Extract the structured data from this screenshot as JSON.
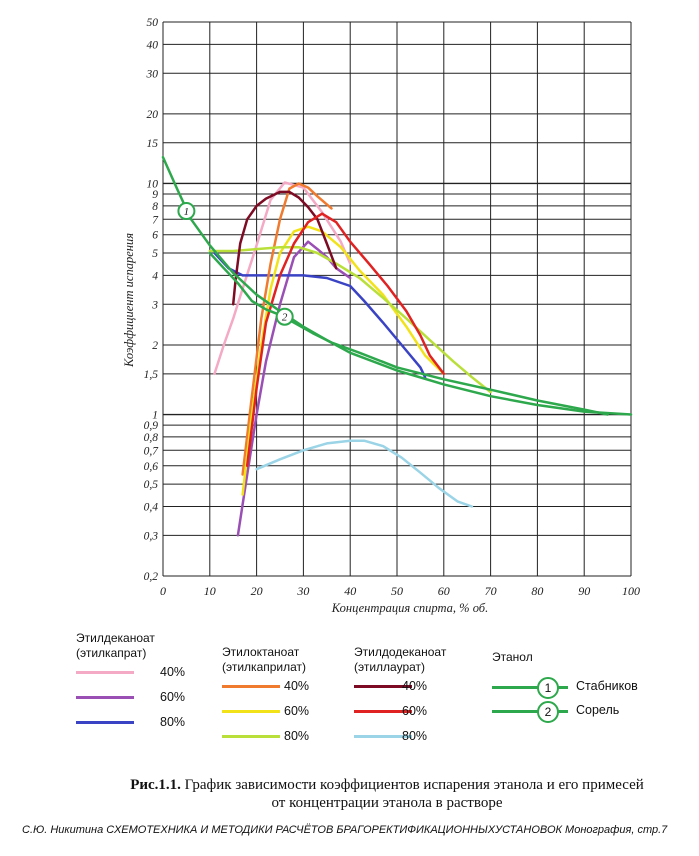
{
  "chart_data": {
    "type": "line",
    "x_scale": "linear",
    "y_scale": "log",
    "xlim": [
      0,
      100
    ],
    "ylim": [
      0.2,
      50
    ],
    "xlabel": "Концентрация спирта, % об.",
    "ylabel": "Коэффициент испарения",
    "x_ticks": [
      0,
      10,
      20,
      30,
      40,
      50,
      60,
      70,
      80,
      90,
      100
    ],
    "y_ticks": [
      0.2,
      0.3,
      0.4,
      0.5,
      0.6,
      0.7,
      0.8,
      0.9,
      1,
      1.5,
      2,
      3,
      4,
      5,
      6,
      7,
      8,
      9,
      10,
      15,
      20,
      30,
      40,
      50
    ],
    "y_tick_labels": [
      "0,2",
      "0,3",
      "0,4",
      "0,5",
      "0,6",
      "0,7",
      "0,8",
      "0,9",
      "1",
      "1,5",
      "2",
      "3",
      "4",
      "5",
      "6",
      "7",
      "8",
      "9",
      "10",
      "15",
      "20",
      "30",
      "40",
      "50"
    ],
    "grid": true,
    "series": [
      {
        "name": "Этилдеканоат 40%",
        "color": "#f4a9c4",
        "x": [
          11,
          13,
          15,
          17,
          20,
          23,
          26,
          30,
          34,
          38,
          40
        ],
        "y": [
          1.5,
          2.0,
          2.6,
          3.5,
          5.4,
          8.5,
          10.1,
          9.6,
          7.5,
          5.6,
          4.5
        ]
      },
      {
        "name": "Этилдеканоат 60%",
        "color": "#9a4fb5",
        "x": [
          16,
          18,
          20,
          22,
          25,
          28,
          31,
          33,
          35,
          37,
          40
        ],
        "y": [
          0.3,
          0.55,
          1.0,
          1.7,
          3.0,
          4.8,
          5.6,
          5.2,
          4.8,
          4.3,
          3.9
        ]
      },
      {
        "name": "Этилдеканоат 80%",
        "color": "#3a43c4",
        "x": [
          11,
          14,
          17,
          20,
          25,
          30,
          35,
          40,
          43,
          47,
          51,
          55,
          56
        ],
        "y": [
          5.0,
          4.3,
          4.0,
          4.0,
          4.0,
          4.0,
          3.9,
          3.6,
          3.1,
          2.5,
          2.0,
          1.6,
          1.45
        ]
      },
      {
        "name": "Этилоктаноат 40%",
        "color": "#f07a2e",
        "x": [
          17,
          19,
          21,
          23,
          25,
          27,
          29,
          31,
          33,
          36
        ],
        "y": [
          0.55,
          1.2,
          2.6,
          4.5,
          7.0,
          9.5,
          10.0,
          9.6,
          8.8,
          7.8
        ]
      },
      {
        "name": "Этилоктаноат 60%",
        "color": "#f2e21a",
        "x": [
          17,
          19,
          21,
          23,
          25,
          28,
          31,
          34,
          38,
          42,
          47,
          52,
          56,
          60
        ],
        "y": [
          0.45,
          1.0,
          2.0,
          3.5,
          5.0,
          6.2,
          6.5,
          6.2,
          5.3,
          4.2,
          3.3,
          2.4,
          1.8,
          1.5
        ]
      },
      {
        "name": "Этилоктаноат 80%",
        "color": "#b9df3a",
        "x": [
          10,
          15,
          20,
          25,
          29,
          33,
          37,
          42,
          47,
          52,
          57,
          62,
          66,
          70
        ],
        "y": [
          5.1,
          5.1,
          5.2,
          5.3,
          5.3,
          5.0,
          4.5,
          3.9,
          3.2,
          2.6,
          2.1,
          1.7,
          1.45,
          1.25
        ]
      },
      {
        "name": "Этилдодеканоат 40%",
        "color": "#7d0b24",
        "x": [
          15,
          15.5,
          16.5,
          18,
          20,
          22,
          25,
          27,
          29,
          31,
          33,
          35,
          37
        ],
        "y": [
          3.0,
          3.8,
          5.5,
          7.0,
          8.0,
          8.6,
          9.2,
          9.2,
          8.7,
          7.9,
          7.0,
          5.5,
          4.3
        ]
      },
      {
        "name": "Этилдодеканоат 60%",
        "color": "#e02222",
        "x": [
          18,
          20,
          22,
          25,
          28,
          31,
          34,
          37,
          40,
          44,
          48,
          52,
          55,
          57,
          60
        ],
        "y": [
          0.6,
          1.3,
          2.5,
          4.0,
          5.5,
          6.8,
          7.4,
          6.8,
          5.6,
          4.5,
          3.6,
          2.8,
          2.2,
          1.8,
          1.5
        ]
      },
      {
        "name": "Этилдодеканоат 80%",
        "color": "#9ad4e6",
        "x": [
          20,
          25,
          30,
          35,
          40,
          43,
          47,
          51,
          55,
          59,
          63,
          66
        ],
        "y": [
          0.58,
          0.64,
          0.7,
          0.75,
          0.77,
          0.77,
          0.73,
          0.65,
          0.56,
          0.48,
          0.42,
          0.4
        ]
      },
      {
        "name": "Этанол Стабников",
        "color": "#2ea84c",
        "x": [
          0,
          3,
          6,
          10,
          15,
          20,
          25,
          30,
          35,
          40,
          50,
          60,
          70,
          80,
          90,
          100
        ],
        "y": [
          13.0,
          9.5,
          7.0,
          5.4,
          4.1,
          3.3,
          2.8,
          2.4,
          2.1,
          1.85,
          1.55,
          1.35,
          1.2,
          1.1,
          1.03,
          1.0
        ]
      },
      {
        "name": "Этанол Сорель",
        "color": "#2ea84c",
        "x": [
          10,
          13,
          16,
          19,
          22,
          25,
          28,
          32,
          36,
          42,
          50,
          60,
          70,
          80,
          90,
          95
        ],
        "y": [
          5.0,
          4.3,
          3.7,
          3.1,
          2.85,
          2.7,
          2.5,
          2.25,
          2.05,
          1.85,
          1.6,
          1.42,
          1.28,
          1.15,
          1.05,
          1.0
        ]
      }
    ],
    "annotations": [
      {
        "label": "1",
        "x": 5,
        "y": 7.6
      },
      {
        "label": "2",
        "x": 26,
        "y": 2.65
      }
    ]
  },
  "legend": {
    "group1": {
      "title_line1": "Этилдеканоат",
      "title_line2": "(этилкапрат)",
      "items": [
        {
          "label": "40%",
          "color": "#f4a9c4"
        },
        {
          "label": "60%",
          "color": "#9a4fb5"
        },
        {
          "label": "80%",
          "color": "#3a43c4"
        }
      ]
    },
    "group2": {
      "title_line1": "Этилоктаноат",
      "title_line2": "(этилкаприлат)",
      "items": [
        {
          "label": "40%",
          "color": "#f07a2e"
        },
        {
          "label": "60%",
          "color": "#f2e21a"
        },
        {
          "label": "80%",
          "color": "#b9df3a"
        }
      ]
    },
    "group3": {
      "title_line1": "Этилдодеканоат",
      "title_line2": "(этиллаурат)",
      "items": [
        {
          "label": "40%",
          "color": "#7d0b24"
        },
        {
          "label": "60%",
          "color": "#e02222"
        },
        {
          "label": "80%",
          "color": "#9ad4e6"
        }
      ]
    },
    "ethanol": {
      "title": "Этанол",
      "items": [
        {
          "num": "1",
          "label": "Стабников"
        },
        {
          "num": "2",
          "label": "Сорель"
        }
      ]
    }
  },
  "caption": {
    "prefix": "Рис.1.1.",
    "text": " График зависимости коэффициентов испарения этанола и его примесей",
    "line2": "от концентрации этанола в растворе"
  },
  "footer": {
    "text": "С.Ю. Никитина СХЕМОТЕХНИКА И МЕТОДИКИ РАСЧЁТОВ БРАГОРЕКТИФИКАЦИОННЫХУСТАНОВОК Монография, стр.7"
  }
}
